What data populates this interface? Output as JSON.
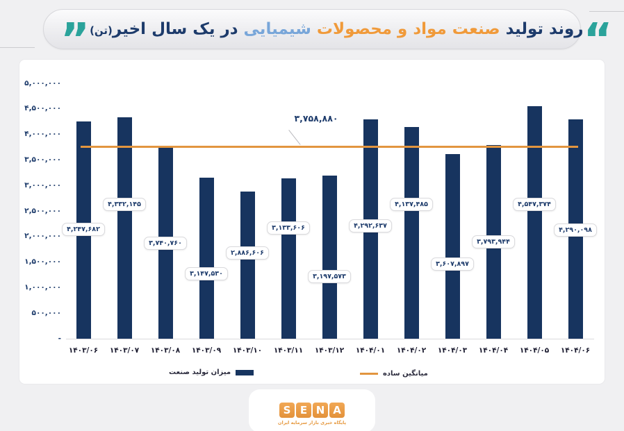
{
  "title": {
    "segments": [
      {
        "text": "روند تولید ",
        "color": "#1d3b6b"
      },
      {
        "text": "صنعت مواد و محصولات ",
        "color": "#f09a3a"
      },
      {
        "text": "شیمیایی ",
        "color": "#78a6d9"
      },
      {
        "text": "در یک سال اخیر",
        "color": "#1d3b6b"
      },
      {
        "text": "(تن)",
        "color": "#1d3b6b",
        "small": true
      }
    ],
    "quote_color": "#2ba39b",
    "left_quote": "”",
    "right_quote": "“"
  },
  "chart_data": {
    "type": "bar",
    "title": "روند تولید صنعت مواد و محصولات شیمیایی در یک سال اخیر(تن)",
    "categories": [
      "۱۴۰۳/۰۶",
      "۱۴۰۳/۰۷",
      "۱۴۰۳/۰۸",
      "۱۴۰۳/۰۹",
      "۱۴۰۳/۱۰",
      "۱۴۰۳/۱۱",
      "۱۴۰۳/۱۲",
      "۱۴۰۴/۰۱",
      "۱۴۰۴/۰۲",
      "۱۴۰۴/۰۳",
      "۱۴۰۴/۰۴",
      "۱۴۰۴/۰۵",
      "۱۴۰۴/۰۶"
    ],
    "values": [
      4247682,
      4332145,
      3740760,
      3147530,
      2886606,
      3133606,
      3197573,
      4292637,
      4137485,
      3607897,
      3793944,
      4547374,
      4290098
    ],
    "value_labels": [
      "۴,۲۴۷,۶۸۲",
      "۴,۳۳۲,۱۴۵",
      "۳,۷۴۰,۷۶۰",
      "۳,۱۴۷,۵۳۰",
      "۲,۸۸۶,۶۰۶",
      "۳,۱۳۳,۶۰۶",
      "۳,۱۹۷,۵۷۳",
      "۴,۲۹۲,۶۳۷",
      "۴,۱۳۷,۴۸۵",
      "۳,۶۰۷,۸۹۷",
      "۳,۷۹۳,۹۴۴",
      "۴,۵۴۷,۳۷۴",
      "۴,۲۹۰,۰۹۸"
    ],
    "average": {
      "value": 3758880,
      "label": "۳,۷۵۸,۸۸۰"
    },
    "ylim": [
      0,
      5000000
    ],
    "y_ticks": [
      "۵,۰۰۰,۰۰۰",
      "۴,۵۰۰,۰۰۰",
      "۴,۰۰۰,۰۰۰",
      "۳,۵۰۰,۰۰۰",
      "۳,۰۰۰,۰۰۰",
      "۲,۵۰۰,۰۰۰",
      "۲,۰۰۰,۰۰۰",
      "۱,۵۰۰,۰۰۰",
      "۱,۰۰۰,۰۰۰",
      "۵۰۰,۰۰۰",
      "-"
    ],
    "grid": false,
    "legend_position": "bottom",
    "bar_color": "#17345f",
    "average_color": "#e2953f",
    "legend": [
      {
        "label": "میزان تولید صنعت",
        "color": "#17345f",
        "type": "bar"
      },
      {
        "label": "میانگین ساده",
        "color": "#e2953f",
        "type": "line"
      }
    ]
  },
  "footer": {
    "logo_letters": [
      "S",
      "E",
      "N",
      "A"
    ],
    "logo_subtitle": "پایگاه خبری بازار سرمایه ایران",
    "logo_color": "#e6993f"
  }
}
